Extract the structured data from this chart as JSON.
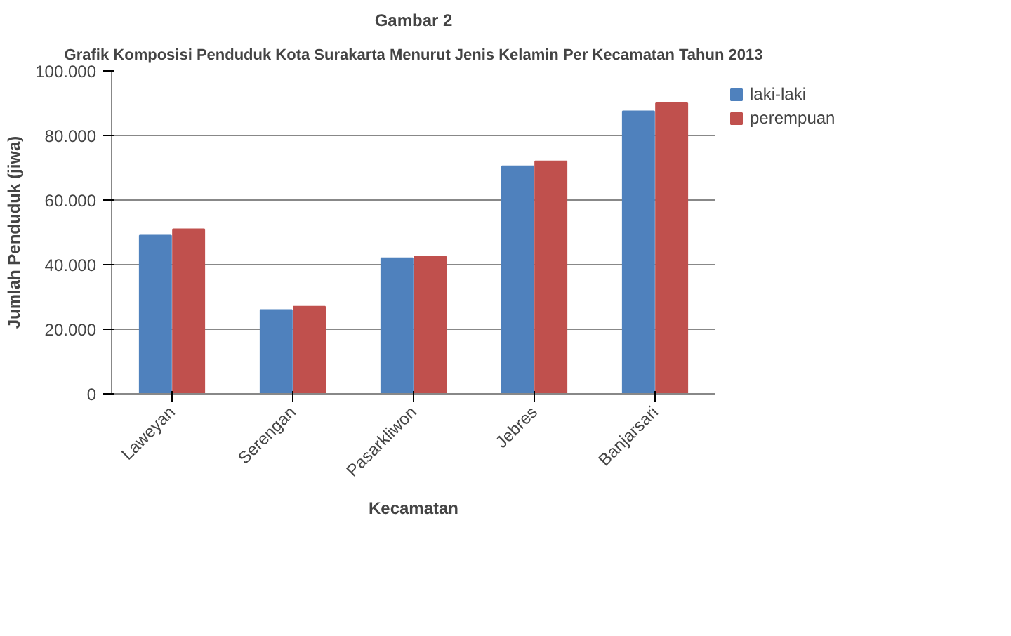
{
  "chart_data": {
    "type": "bar",
    "title": "Gambar 2",
    "subtitle": "Grafik Komposisi Penduduk Kota Surakarta Menurut Jenis Kelamin Per Kecamatan Tahun 2013",
    "xlabel": "Kecamatan",
    "ylabel": "Jumlah Penduduk (jiwa)",
    "categories": [
      "Laweyan",
      "Serengan",
      "Pasarkliwon",
      "Jebres",
      "Banjarsari"
    ],
    "series": [
      {
        "name": "laki-laki",
        "color": "#4f81bd",
        "values": [
          49000,
          26000,
          42000,
          70500,
          87500
        ]
      },
      {
        "name": "perempuan",
        "color": "#c0504d",
        "values": [
          51000,
          27000,
          42500,
          72000,
          90000
        ]
      }
    ],
    "ylim": [
      0,
      100000
    ],
    "yticks": [
      {
        "value": 0,
        "label": "0"
      },
      {
        "value": 20000,
        "label": "20.000"
      },
      {
        "value": 40000,
        "label": "40.000"
      },
      {
        "value": 60000,
        "label": "60.000"
      },
      {
        "value": 80000,
        "label": "80.000"
      },
      {
        "value": 100000,
        "label": "100.000"
      }
    ],
    "grid": "y",
    "legend": "right"
  }
}
